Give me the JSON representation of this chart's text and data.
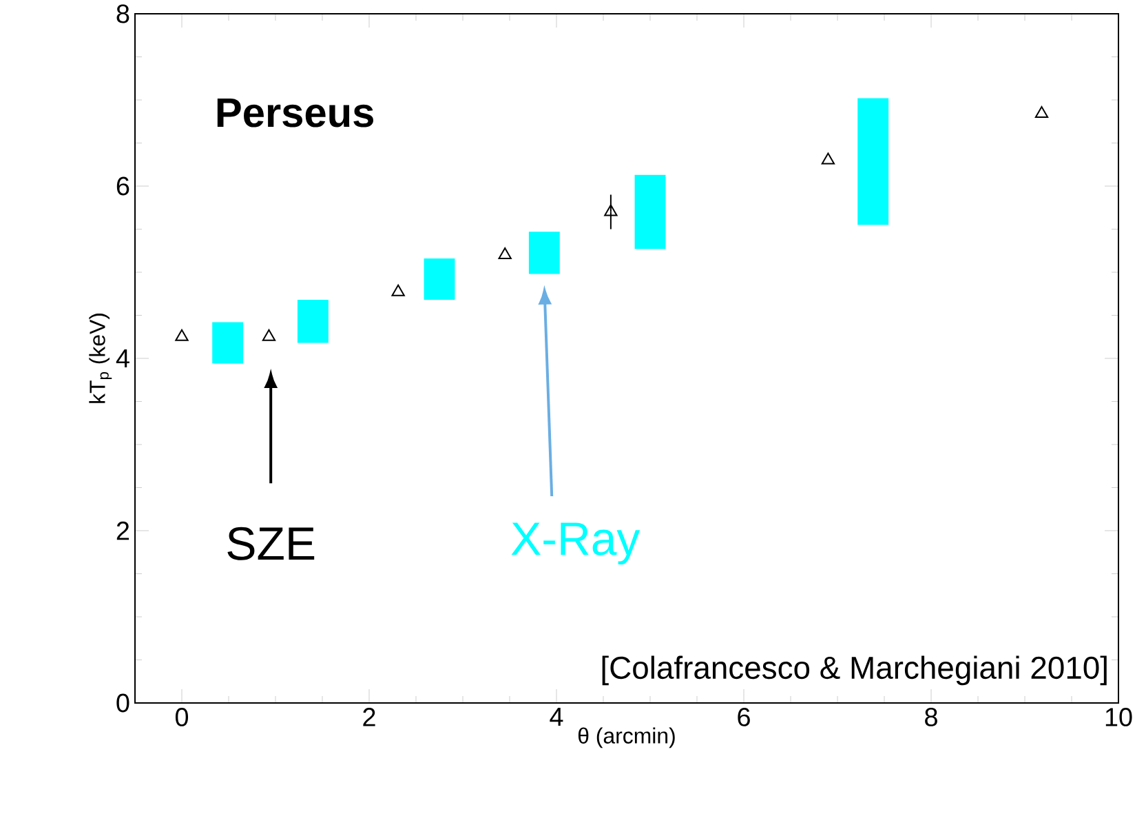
{
  "chart_data": {
    "type": "scatter",
    "title": "Perseus",
    "xlabel": "θ (arcmin)",
    "ylabel": "kT$_{p}$ (keV)",
    "xlim": [
      -0.5,
      10
    ],
    "ylim": [
      0,
      8
    ],
    "xticks": [
      0,
      2,
      4,
      6,
      8,
      10
    ],
    "yticks": [
      0,
      2,
      4,
      6,
      8
    ],
    "series": [
      {
        "name": "SZE",
        "color": "#000000",
        "marker": "triangle",
        "x": [
          0,
          0.93,
          2.31,
          3.45,
          4.58,
          6.9,
          9.18
        ],
        "values": [
          4.25,
          4.25,
          4.77,
          5.2,
          5.7,
          6.3,
          6.84
        ],
        "errors": [
          null,
          null,
          null,
          null,
          0.2,
          null,
          null
        ]
      },
      {
        "name": "X-Ray",
        "type": "bar",
        "color": "#00ffff",
        "x": [
          0.49,
          1.4,
          2.75,
          3.87,
          5.0,
          7.38
        ],
        "base": [
          3.94,
          4.18,
          4.68,
          4.98,
          5.27,
          5.55
        ],
        "values": [
          0.48,
          0.5,
          0.48,
          0.49,
          0.86,
          1.47
        ]
      }
    ],
    "annotations": [
      "[Colafrancesco & Marchegiani 2010]"
    ]
  }
}
